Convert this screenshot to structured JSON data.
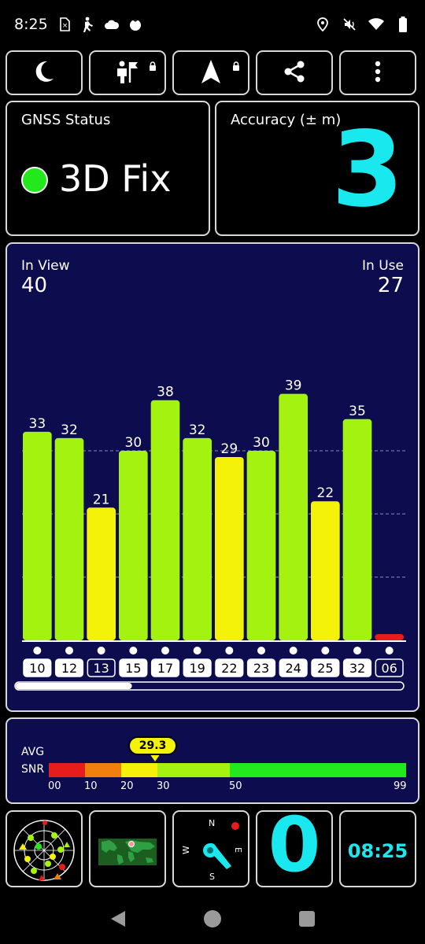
{
  "status_bar": {
    "time": "8:25",
    "left_icons": [
      "sim-alert-icon",
      "hiking-icon",
      "cloud-icon",
      "tomato-icon"
    ],
    "right_icons": [
      "location-icon",
      "mute-icon",
      "wifi-icon",
      "battery-icon"
    ]
  },
  "toolbar": {
    "buttons": [
      {
        "name": "night-mode-button",
        "icon": "moon-icon",
        "locked": false
      },
      {
        "name": "mark-location-button",
        "icon": "person-flag-icon",
        "locked": true
      },
      {
        "name": "navigate-button",
        "icon": "navigation-arrow-icon",
        "locked": true
      },
      {
        "name": "share-button",
        "icon": "share-icon",
        "locked": false
      },
      {
        "name": "more-options-button",
        "icon": "more-vertical-icon",
        "locked": false
      }
    ]
  },
  "gnss": {
    "title": "GNSS Status",
    "fix_text": "3D Fix",
    "fix_color": "#22e81c"
  },
  "accuracy": {
    "title": "Accuracy (± m)",
    "value": "3",
    "color": "#19e8ef"
  },
  "satellites": {
    "in_view_label": "In View",
    "in_view_value": "40",
    "in_use_label": "In Use",
    "in_use_value": "27"
  },
  "chart_data": {
    "type": "bar",
    "categories": [
      "10",
      "12",
      "13",
      "15",
      "17",
      "19",
      "22",
      "23",
      "24",
      "25",
      "32",
      "06"
    ],
    "values": [
      33,
      32,
      21,
      30,
      38,
      32,
      29,
      30,
      39,
      22,
      35,
      1
    ],
    "value_labels": [
      "33",
      "32",
      "21",
      "30",
      "38",
      "32",
      "29",
      "30",
      "39",
      "22",
      "35",
      ""
    ],
    "in_use": [
      true,
      true,
      false,
      true,
      true,
      true,
      true,
      true,
      true,
      true,
      true,
      false
    ],
    "ylim": [
      0,
      50
    ],
    "gridlines": [
      10,
      20,
      30
    ],
    "grid": true,
    "colors": {
      "high": "#a4f20f",
      "mid": "#f5f20a",
      "low": "#e81c1c",
      "background": "#0c0c4e"
    },
    "scroll_position": 0.3
  },
  "snr": {
    "label_line1": "AVG",
    "label_line2": "SNR",
    "avg_value": "29.3",
    "avg": 29.3,
    "ticks": [
      "00",
      "10",
      "20",
      "30",
      "50",
      "99"
    ],
    "segments": [
      {
        "from": 0,
        "to": 10,
        "color": "#e81c1c"
      },
      {
        "from": 10,
        "to": 20,
        "color": "#f0800e"
      },
      {
        "from": 20,
        "to": 30,
        "color": "#f5f20a"
      },
      {
        "from": 30,
        "to": 50,
        "color": "#a4f20f"
      },
      {
        "from": 50,
        "to": 99,
        "color": "#22e81c"
      }
    ]
  },
  "tiles": {
    "sky_plot_icon": "sky-plot-icon",
    "world_map_icon": "world-map-icon",
    "compass": {
      "n": "N",
      "s": "S",
      "e": "E",
      "w": "W"
    },
    "speed_value": "0",
    "clock_value": "08:25"
  },
  "nav_bar": {
    "back_icon": "back-icon",
    "home_icon": "home-icon",
    "recents_icon": "recents-icon"
  }
}
